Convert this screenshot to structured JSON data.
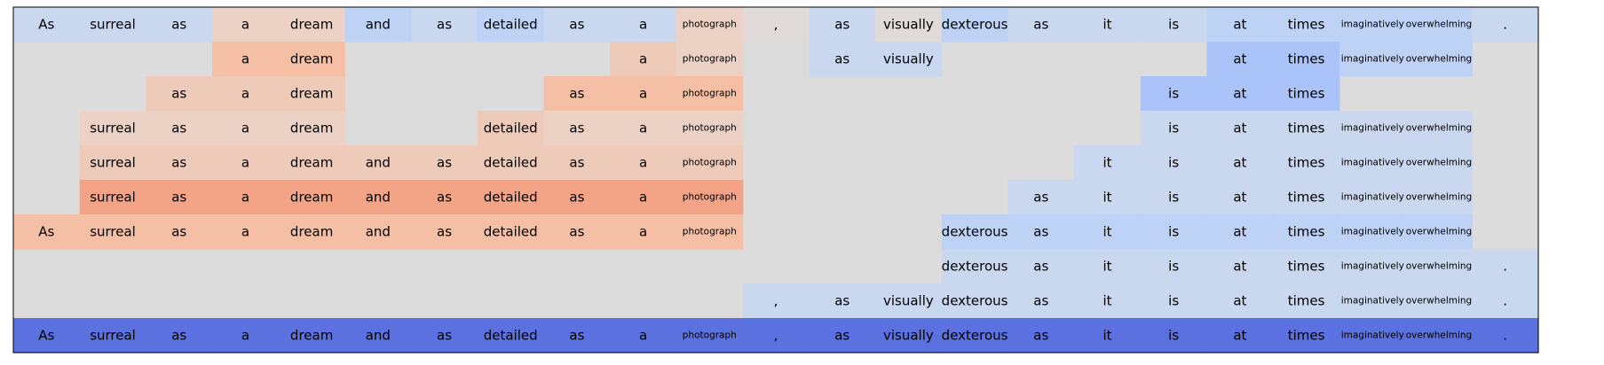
{
  "chart_data": {
    "type": "heatmap",
    "tokens": [
      "As",
      "surreal",
      "as",
      "a",
      "dream",
      "and",
      "as",
      "detailed",
      "as",
      "a",
      "photograph",
      ",",
      "as",
      "visually",
      "dexterous",
      "as",
      "it",
      "is",
      "at",
      "times",
      "imaginatively",
      "overwhelming",
      "."
    ],
    "colors": {
      "empty": "#dcdcdc",
      "outline": "#000000",
      "text": "#000000",
      "t1": "#c9d7ef",
      "t2": "#bdd2f5",
      "b1": "#aac4f9",
      "b2": "#5b71df",
      "p1": "#ecd2c4",
      "p2": "#eecbb9",
      "p3": "#f4bfa5",
      "p4": "#f4c6ae",
      "p5": "#f3a386",
      "e1": "#e0dbd8"
    },
    "rows": [
      {
        "present": [
          1,
          1,
          1,
          1,
          1,
          1,
          1,
          1,
          1,
          1,
          1,
          1,
          1,
          1,
          1,
          1,
          1,
          1,
          1,
          1,
          1,
          1,
          1
        ],
        "color": [
          "t1",
          "t1",
          "t1",
          "p1",
          "p1",
          "t2",
          "t1",
          "t2",
          "t1",
          "t1",
          "p1",
          "e1",
          "t1",
          "e1",
          "t2",
          "t1",
          "t1",
          "t1",
          "t2",
          "t2",
          "t2",
          "t2",
          "t1"
        ]
      },
      {
        "present": [
          0,
          0,
          0,
          1,
          1,
          0,
          0,
          0,
          0,
          1,
          1,
          0,
          1,
          1,
          0,
          0,
          0,
          0,
          1,
          1,
          1,
          1,
          0
        ],
        "color": [
          "",
          "",
          "",
          "p3",
          "p3",
          "",
          "",
          "",
          "",
          "p2",
          "p1",
          "",
          "t1",
          "t1",
          "",
          "",
          "",
          "",
          "b1",
          "b1",
          "t2",
          "t2",
          ""
        ]
      },
      {
        "present": [
          0,
          0,
          1,
          1,
          1,
          0,
          0,
          0,
          1,
          1,
          1,
          0,
          0,
          0,
          0,
          0,
          0,
          1,
          1,
          1,
          0,
          0,
          0
        ],
        "color": [
          "",
          "",
          "p2",
          "p2",
          "p2",
          "",
          "",
          "",
          "p3",
          "p3",
          "p3",
          "",
          "",
          "",
          "",
          "",
          "",
          "b1",
          "b1",
          "b1",
          "",
          "",
          ""
        ]
      },
      {
        "present": [
          0,
          1,
          1,
          1,
          1,
          0,
          0,
          1,
          1,
          1,
          1,
          0,
          0,
          0,
          0,
          0,
          0,
          1,
          1,
          1,
          1,
          1,
          0
        ],
        "color": [
          "",
          "p1",
          "p1",
          "p1",
          "p1",
          "",
          "",
          "p2",
          "p1",
          "p1",
          "p1",
          "",
          "",
          "",
          "",
          "",
          "",
          "t1",
          "t1",
          "t1",
          "t1",
          "t1",
          ""
        ]
      },
      {
        "present": [
          0,
          1,
          1,
          1,
          1,
          1,
          1,
          1,
          1,
          1,
          1,
          0,
          0,
          0,
          0,
          0,
          1,
          1,
          1,
          1,
          1,
          1,
          0
        ],
        "color": [
          "",
          "p2",
          "p2",
          "p2",
          "p2",
          "p2",
          "p2",
          "p2",
          "p2",
          "p2",
          "p2",
          "",
          "",
          "",
          "",
          "",
          "t1",
          "t1",
          "t1",
          "t1",
          "t1",
          "t1",
          ""
        ]
      },
      {
        "present": [
          0,
          1,
          1,
          1,
          1,
          1,
          1,
          1,
          1,
          1,
          1,
          0,
          0,
          0,
          0,
          1,
          1,
          1,
          1,
          1,
          1,
          1,
          0
        ],
        "color": [
          "",
          "p5",
          "p5",
          "p5",
          "p5",
          "p5",
          "p5",
          "p5",
          "p5",
          "p5",
          "p5",
          "",
          "",
          "",
          "",
          "t1",
          "t1",
          "t1",
          "t1",
          "t1",
          "t1",
          "t1",
          ""
        ]
      },
      {
        "present": [
          1,
          1,
          1,
          1,
          1,
          1,
          1,
          1,
          1,
          1,
          1,
          0,
          0,
          0,
          1,
          1,
          1,
          1,
          1,
          1,
          1,
          1,
          0
        ],
        "color": [
          "p3",
          "p3",
          "p3",
          "p3",
          "p3",
          "p3",
          "p3",
          "p3",
          "p3",
          "p3",
          "p3",
          "",
          "",
          "",
          "t2",
          "t2",
          "t2",
          "t2",
          "t2",
          "t2",
          "t2",
          "t2",
          ""
        ]
      },
      {
        "present": [
          0,
          0,
          0,
          0,
          0,
          0,
          0,
          0,
          0,
          0,
          0,
          0,
          0,
          0,
          1,
          1,
          1,
          1,
          1,
          1,
          1,
          1,
          1
        ],
        "color": [
          "",
          "",
          "",
          "",
          "",
          "",
          "",
          "",
          "",
          "",
          "",
          "",
          "",
          "",
          "t1",
          "t1",
          "t1",
          "t1",
          "t1",
          "t1",
          "t1",
          "t1",
          "t1"
        ]
      },
      {
        "present": [
          0,
          0,
          0,
          0,
          0,
          0,
          0,
          0,
          0,
          0,
          0,
          1,
          1,
          1,
          1,
          1,
          1,
          1,
          1,
          1,
          1,
          1,
          1
        ],
        "color": [
          "",
          "",
          "",
          "",
          "",
          "",
          "",
          "",
          "",
          "",
          "",
          "t1",
          "t1",
          "t1",
          "t1",
          "t1",
          "t1",
          "t1",
          "t1",
          "t1",
          "t1",
          "t1",
          "t1"
        ]
      },
      {
        "present": [
          1,
          1,
          1,
          1,
          1,
          1,
          1,
          1,
          1,
          1,
          1,
          1,
          1,
          1,
          1,
          1,
          1,
          1,
          1,
          1,
          1,
          1,
          1
        ],
        "color": [
          "b2",
          "b2",
          "b2",
          "b2",
          "b2",
          "b2",
          "b2",
          "b2",
          "b2",
          "b2",
          "b2",
          "b2",
          "b2",
          "b2",
          "b2",
          "b2",
          "b2",
          "b2",
          "b2",
          "b2",
          "b2",
          "b2",
          "b2"
        ]
      }
    ]
  }
}
